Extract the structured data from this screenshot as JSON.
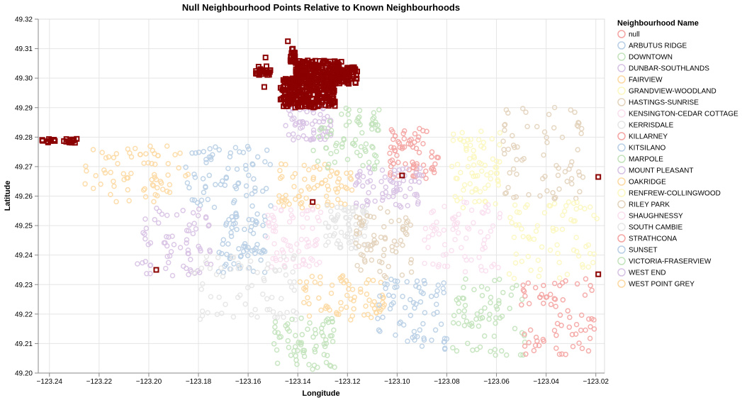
{
  "chart_data": {
    "type": "scatter",
    "title": "Null Neighbourhood Points Relative to Known Neighbourhoods",
    "xlabel": "Longitude",
    "ylabel": "Latitude",
    "xlim": [
      -123.2445,
      -123.0165
    ],
    "ylim": [
      49.2,
      49.32
    ],
    "x_ticks": [
      -123.24,
      -123.22,
      -123.2,
      -123.18,
      -123.16,
      -123.14,
      -123.12,
      -123.1,
      -123.08,
      -123.06,
      -123.04,
      -123.02
    ],
    "x_tick_labels": [
      "−123.24",
      "−123.22",
      "−123.20",
      "−123.18",
      "−123.16",
      "−123.14",
      "−123.12",
      "−123.10",
      "−123.08",
      "−123.06",
      "−123.04",
      "−123.02"
    ],
    "y_ticks": [
      49.2,
      49.21,
      49.22,
      49.23,
      49.24,
      49.25,
      49.26,
      49.27,
      49.28,
      49.29,
      49.3,
      49.31,
      49.32
    ],
    "y_tick_labels": [
      "49.20",
      "49.21",
      "49.22",
      "49.23",
      "49.24",
      "49.25",
      "49.26",
      "49.27",
      "49.28",
      "49.29",
      "49.30",
      "49.31",
      "49.32"
    ],
    "grid": true,
    "legend": {
      "title": "Neighbourhood Name",
      "placement": "right",
      "entries": [
        {
          "name": "null",
          "color": "#f4a5a3"
        },
        {
          "name": "ARBUTUS RIDGE",
          "color": "#b9cfe6"
        },
        {
          "name": "DOWNTOWN",
          "color": "#c3e3bd"
        },
        {
          "name": "DUNBAR-SOUTHLANDS",
          "color": "#d8c2e4"
        },
        {
          "name": "FAIRVIEW",
          "color": "#fdd9a3"
        },
        {
          "name": "GRANDVIEW-WOODLAND",
          "color": "#fcf7c0"
        },
        {
          "name": "HASTINGS-SUNRISE",
          "color": "#e3d3bd"
        },
        {
          "name": "KENSINGTON-CEDAR COTTAGE",
          "color": "#fadfee"
        },
        {
          "name": "KERRISDALE",
          "color": "#e6e6e6"
        },
        {
          "name": "KILLARNEY",
          "color": "#f4a5a3"
        },
        {
          "name": "KITSILANO",
          "color": "#b9cfe6"
        },
        {
          "name": "MARPOLE",
          "color": "#c3e3bd"
        },
        {
          "name": "MOUNT PLEASANT",
          "color": "#d8c2e4"
        },
        {
          "name": "OAKRIDGE",
          "color": "#fdd9a3"
        },
        {
          "name": "RENFREW-COLLINGWOOD",
          "color": "#fcf7c0"
        },
        {
          "name": "RILEY PARK",
          "color": "#e3d3bd"
        },
        {
          "name": "SHAUGHNESSY",
          "color": "#fadfee"
        },
        {
          "name": "SOUTH CAMBIE",
          "color": "#e6e6e6"
        },
        {
          "name": "STRATHCONA",
          "color": "#f4a5a3"
        },
        {
          "name": "SUNSET",
          "color": "#b9cfe6"
        },
        {
          "name": "VICTORIA-FRASERVIEW",
          "color": "#c3e3bd"
        },
        {
          "name": "WEST END",
          "color": "#d8c2e4"
        },
        {
          "name": "WEST POINT GREY",
          "color": "#fdd9a3"
        }
      ]
    },
    "null_point_color": "#8b0000",
    "neighbourhood_regions": [
      {
        "name": "WEST POINT GREY",
        "lon": [
          -123.226,
          -123.184
        ],
        "lat": [
          49.258,
          49.277
        ]
      },
      {
        "name": "KITSILANO",
        "lon": [
          -123.186,
          -123.15
        ],
        "lat": [
          49.256,
          49.277
        ]
      },
      {
        "name": "FAIRVIEW",
        "lon": [
          -123.148,
          -123.118
        ],
        "lat": [
          49.256,
          49.271
        ]
      },
      {
        "name": "WEST END",
        "lon": [
          -123.145,
          -123.126
        ],
        "lat": [
          49.279,
          49.292
        ]
      },
      {
        "name": "DOWNTOWN",
        "lon": [
          -123.134,
          -123.107
        ],
        "lat": [
          49.269,
          49.29
        ]
      },
      {
        "name": "STRATHCONA",
        "lon": [
          -123.103,
          -123.083
        ],
        "lat": [
          49.266,
          49.284
        ]
      },
      {
        "name": "MOUNT PLEASANT",
        "lon": [
          -123.117,
          -123.09
        ],
        "lat": [
          49.256,
          49.27
        ]
      },
      {
        "name": "GRANDVIEW-WOODLAND",
        "lon": [
          -123.078,
          -123.058
        ],
        "lat": [
          49.256,
          49.283
        ]
      },
      {
        "name": "HASTINGS-SUNRISE",
        "lon": [
          -123.058,
          -123.024
        ],
        "lat": [
          49.259,
          49.291
        ]
      },
      {
        "name": "DUNBAR-SOUTHLANDS",
        "lon": [
          -123.205,
          -123.175
        ],
        "lat": [
          49.233,
          49.256
        ]
      },
      {
        "name": "ARBUTUS RIDGE",
        "lon": [
          -123.172,
          -123.153
        ],
        "lat": [
          49.234,
          49.256
        ]
      },
      {
        "name": "SHAUGHNESSY",
        "lon": [
          -123.153,
          -123.13
        ],
        "lat": [
          49.236,
          49.256
        ]
      },
      {
        "name": "SOUTH CAMBIE",
        "lon": [
          -123.129,
          -123.112
        ],
        "lat": [
          49.242,
          49.257
        ]
      },
      {
        "name": "RILEY PARK",
        "lon": [
          -123.117,
          -123.094
        ],
        "lat": [
          49.232,
          49.256
        ]
      },
      {
        "name": "KENSINGTON-CEDAR COTTAGE",
        "lon": [
          -123.089,
          -123.058
        ],
        "lat": [
          49.234,
          49.258
        ]
      },
      {
        "name": "RENFREW-COLLINGWOOD",
        "lon": [
          -123.055,
          -123.019
        ],
        "lat": [
          49.232,
          49.258
        ]
      },
      {
        "name": "KERRISDALE",
        "lon": [
          -123.182,
          -123.14
        ],
        "lat": [
          49.218,
          49.24
        ]
      },
      {
        "name": "OAKRIDGE",
        "lon": [
          -123.14,
          -123.105
        ],
        "lat": [
          49.218,
          49.233
        ]
      },
      {
        "name": "MARPOLE",
        "lon": [
          -123.15,
          -123.125
        ],
        "lat": [
          49.201,
          49.219
        ]
      },
      {
        "name": "SUNSET",
        "lon": [
          -123.108,
          -123.08
        ],
        "lat": [
          49.208,
          49.232
        ]
      },
      {
        "name": "VICTORIA-FRASERVIEW",
        "lon": [
          -123.078,
          -123.048
        ],
        "lat": [
          49.206,
          49.232
        ]
      },
      {
        "name": "KILLARNEY",
        "lon": [
          -123.05,
          -123.02
        ],
        "lat": [
          49.206,
          49.232
        ]
      }
    ],
    "null_clusters": [
      {
        "lon": [
          -123.147,
          -123.125
        ],
        "lat": [
          49.29,
          49.3
        ]
      },
      {
        "lon": [
          -123.141,
          -123.122
        ],
        "lat": [
          49.299,
          49.306
        ]
      },
      {
        "lon": [
          -123.126,
          -123.116
        ],
        "lat": [
          49.298,
          49.304
        ]
      },
      {
        "lon": [
          -123.157,
          -123.151
        ],
        "lat": [
          49.301,
          49.304
        ]
      },
      {
        "lon": [
          -123.143,
          -123.141
        ],
        "lat": [
          49.305,
          49.31
        ]
      },
      {
        "lon": [
          -123.243,
          -123.229
        ],
        "lat": [
          49.278,
          49.2795
        ]
      }
    ],
    "null_points": [
      {
        "lon": -123.153,
        "lat": 49.307
      },
      {
        "lon": -123.144,
        "lat": 49.3125
      },
      {
        "lon": -123.1535,
        "lat": 49.297
      },
      {
        "lon": -123.134,
        "lat": 49.258
      },
      {
        "lon": -123.098,
        "lat": 49.267
      },
      {
        "lon": -123.197,
        "lat": 49.235
      },
      {
        "lon": -123.019,
        "lat": 49.2665
      },
      {
        "lon": -123.019,
        "lat": 49.2335
      }
    ]
  }
}
